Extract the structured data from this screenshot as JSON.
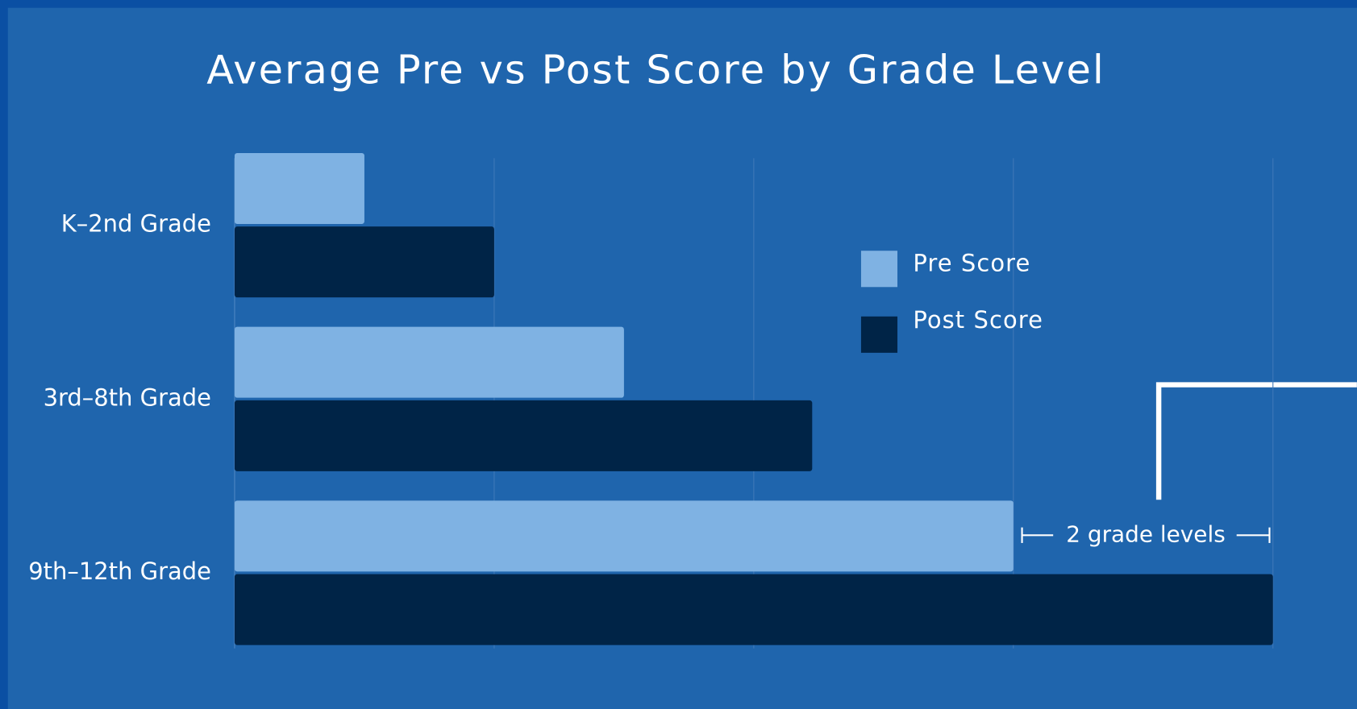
{
  "chart_data": {
    "type": "bar",
    "orientation": "horizontal",
    "title": "Average Pre vs Post Score by Grade Level",
    "categories": [
      "K–2nd Grade",
      "3rd–8th Grade",
      "9th–12th Grade"
    ],
    "series": [
      {
        "name": "Pre Score",
        "color": "#7fb2e3",
        "values": [
          1.0,
          3.0,
          6.0
        ]
      },
      {
        "name": "Post Score",
        "color": "#002447",
        "values": [
          2.0,
          4.45,
          8.0
        ]
      }
    ],
    "xlim": [
      0,
      8
    ],
    "xticks": [
      0,
      2,
      4,
      6,
      8
    ],
    "grid": true,
    "legend": "right",
    "annotation": "2 grade levels"
  }
}
